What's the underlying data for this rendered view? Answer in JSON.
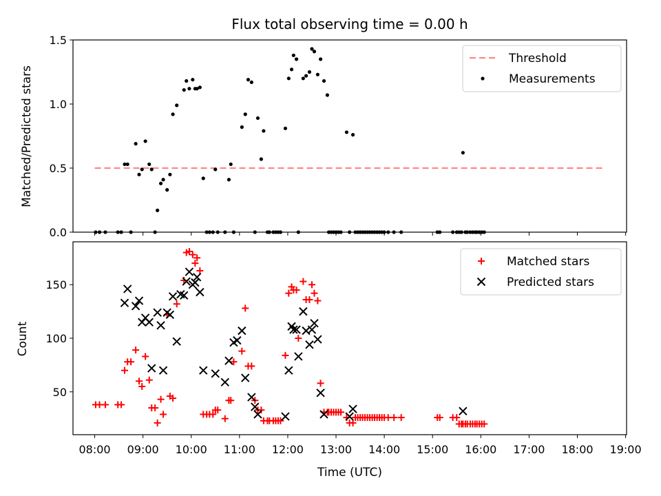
{
  "chart_data": [
    {
      "type": "scatter",
      "title": "Flux total observing time = 0.00 h",
      "xlabel": "",
      "ylabel": "Matched/Predicted stars",
      "xlim": [
        7.55,
        19.02
      ],
      "ylim": [
        0,
        1.5
      ],
      "yticks": [
        0.0,
        0.5,
        1.0,
        1.5
      ],
      "ytick_labels": [
        "0.0",
        "0.5",
        "1.0",
        "1.5"
      ],
      "xticks": [
        8,
        9,
        10,
        11,
        12,
        13,
        14,
        15,
        16,
        17,
        18,
        19
      ],
      "legend_position": "top-right",
      "threshold": {
        "name": "Threshold",
        "value": 0.5,
        "x": [
          8.0,
          18.55
        ],
        "color": "#ff7f7f"
      },
      "measurements": {
        "name": "Measurements",
        "color": "#000000",
        "points": [
          [
            8.02,
            0
          ],
          [
            8.1,
            0
          ],
          [
            8.22,
            0
          ],
          [
            8.48,
            0
          ],
          [
            8.55,
            0
          ],
          [
            8.62,
            0.53
          ],
          [
            8.68,
            0.53
          ],
          [
            8.75,
            0
          ],
          [
            8.85,
            0.69
          ],
          [
            8.92,
            0.45
          ],
          [
            8.98,
            0.49
          ],
          [
            9.05,
            0.71
          ],
          [
            9.13,
            0.53
          ],
          [
            9.18,
            0.49
          ],
          [
            9.25,
            0
          ],
          [
            9.3,
            0.17
          ],
          [
            9.37,
            0.38
          ],
          [
            9.42,
            0.41
          ],
          [
            9.5,
            0.33
          ],
          [
            9.56,
            0.45
          ],
          [
            9.62,
            0.92
          ],
          [
            9.7,
            0.99
          ],
          [
            9.85,
            1.11
          ],
          [
            9.9,
            1.18
          ],
          [
            9.96,
            1.12
          ],
          [
            10.03,
            1.19
          ],
          [
            10.08,
            1.12
          ],
          [
            10.12,
            1.12
          ],
          [
            10.18,
            1.13
          ],
          [
            10.25,
            0.42
          ],
          [
            10.32,
            0
          ],
          [
            10.38,
            0
          ],
          [
            10.45,
            0
          ],
          [
            10.5,
            0.49
          ],
          [
            10.55,
            0
          ],
          [
            10.7,
            0
          ],
          [
            10.78,
            0.41
          ],
          [
            10.82,
            0.53
          ],
          [
            10.88,
            0
          ],
          [
            11.05,
            0.82
          ],
          [
            11.12,
            0.92
          ],
          [
            11.18,
            1.19
          ],
          [
            11.25,
            1.17
          ],
          [
            11.32,
            0
          ],
          [
            11.38,
            0.89
          ],
          [
            11.45,
            0.57
          ],
          [
            11.5,
            0.79
          ],
          [
            11.58,
            0
          ],
          [
            11.62,
            0
          ],
          [
            11.7,
            0
          ],
          [
            11.75,
            0
          ],
          [
            11.8,
            0
          ],
          [
            11.85,
            0
          ],
          [
            11.95,
            0.81
          ],
          [
            12.02,
            1.2
          ],
          [
            12.08,
            1.27
          ],
          [
            12.12,
            1.38
          ],
          [
            12.18,
            1.35
          ],
          [
            12.22,
            0
          ],
          [
            12.32,
            1.2
          ],
          [
            12.38,
            1.22
          ],
          [
            12.45,
            1.25
          ],
          [
            12.5,
            1.43
          ],
          [
            12.55,
            1.41
          ],
          [
            12.62,
            1.23
          ],
          [
            12.68,
            1.35
          ],
          [
            12.75,
            1.18
          ],
          [
            12.82,
            1.07
          ],
          [
            12.85,
            0
          ],
          [
            12.9,
            0
          ],
          [
            12.95,
            0
          ],
          [
            13.0,
            0
          ],
          [
            13.05,
            0
          ],
          [
            13.1,
            0
          ],
          [
            13.22,
            0.78
          ],
          [
            13.28,
            0
          ],
          [
            13.35,
            0.76
          ],
          [
            13.4,
            0
          ],
          [
            13.45,
            0
          ],
          [
            13.5,
            0
          ],
          [
            13.55,
            0
          ],
          [
            13.6,
            0
          ],
          [
            13.65,
            0
          ],
          [
            13.7,
            0
          ],
          [
            13.75,
            0
          ],
          [
            13.8,
            0
          ],
          [
            13.85,
            0
          ],
          [
            13.9,
            0
          ],
          [
            13.95,
            0
          ],
          [
            14.0,
            0
          ],
          [
            14.08,
            0
          ],
          [
            14.2,
            0
          ],
          [
            14.35,
            0
          ],
          [
            15.1,
            0
          ],
          [
            15.15,
            0
          ],
          [
            15.42,
            0
          ],
          [
            15.5,
            0
          ],
          [
            15.55,
            0
          ],
          [
            15.6,
            0
          ],
          [
            15.63,
            0.62
          ],
          [
            15.68,
            0
          ],
          [
            15.72,
            0
          ],
          [
            15.78,
            0
          ],
          [
            15.83,
            0
          ],
          [
            15.88,
            0
          ],
          [
            15.92,
            0
          ],
          [
            15.97,
            0
          ],
          [
            16.02,
            0
          ],
          [
            16.07,
            0
          ]
        ]
      }
    },
    {
      "type": "scatter",
      "title": "",
      "xlabel": "Time (UTC)",
      "ylabel": "Count",
      "xlim": [
        7.55,
        19.02
      ],
      "ylim": [
        10,
        190
      ],
      "yticks": [
        50,
        100,
        150
      ],
      "xticks": [
        8,
        9,
        10,
        11,
        12,
        13,
        14,
        15,
        16,
        17,
        18,
        19
      ],
      "xtick_labels": [
        "08:00",
        "09:00",
        "10:00",
        "11:00",
        "12:00",
        "13:00",
        "14:00",
        "15:00",
        "16:00",
        "17:00",
        "18:00",
        "19:00"
      ],
      "legend_position": "top-right",
      "series": [
        {
          "name": "Matched stars",
          "marker": "plus",
          "color": "#ff0000",
          "points": [
            [
              8.02,
              38
            ],
            [
              8.1,
              38
            ],
            [
              8.22,
              38
            ],
            [
              8.48,
              38
            ],
            [
              8.55,
              38
            ],
            [
              8.62,
              70
            ],
            [
              8.68,
              78
            ],
            [
              8.75,
              78
            ],
            [
              8.85,
              89
            ],
            [
              8.92,
              60
            ],
            [
              8.98,
              55
            ],
            [
              9.05,
              83
            ],
            [
              9.13,
              61
            ],
            [
              9.18,
              35
            ],
            [
              9.25,
              35
            ],
            [
              9.3,
              21
            ],
            [
              9.37,
              43
            ],
            [
              9.42,
              29
            ],
            [
              9.5,
              122
            ],
            [
              9.56,
              46
            ],
            [
              9.62,
              44
            ],
            [
              9.7,
              132
            ],
            [
              9.85,
              154
            ],
            [
              9.9,
              180
            ],
            [
              9.96,
              181
            ],
            [
              10.03,
              178
            ],
            [
              10.08,
              170
            ],
            [
              10.12,
              175
            ],
            [
              10.18,
              163
            ],
            [
              10.25,
              29
            ],
            [
              10.32,
              29
            ],
            [
              10.38,
              29
            ],
            [
              10.45,
              29
            ],
            [
              10.5,
              33
            ],
            [
              10.55,
              33
            ],
            [
              10.7,
              25
            ],
            [
              10.78,
              42
            ],
            [
              10.82,
              42
            ],
            [
              10.88,
              78
            ],
            [
              11.05,
              88
            ],
            [
              11.12,
              128
            ],
            [
              11.18,
              74
            ],
            [
              11.25,
              74
            ],
            [
              11.32,
              42
            ],
            [
              11.38,
              33
            ],
            [
              11.45,
              33
            ],
            [
              11.5,
              23
            ],
            [
              11.58,
              23
            ],
            [
              11.62,
              23
            ],
            [
              11.7,
              23
            ],
            [
              11.75,
              23
            ],
            [
              11.8,
              23
            ],
            [
              11.85,
              23
            ],
            [
              11.95,
              84
            ],
            [
              12.02,
              142
            ],
            [
              12.08,
              148
            ],
            [
              12.12,
              145
            ],
            [
              12.18,
              145
            ],
            [
              12.22,
              100
            ],
            [
              12.32,
              153
            ],
            [
              12.38,
              136
            ],
            [
              12.45,
              136
            ],
            [
              12.5,
              150
            ],
            [
              12.55,
              142
            ],
            [
              12.62,
              135
            ],
            [
              12.68,
              58
            ],
            [
              12.75,
              31
            ],
            [
              12.82,
              31
            ],
            [
              12.85,
              31
            ],
            [
              12.9,
              31
            ],
            [
              12.95,
              31
            ],
            [
              13.0,
              31
            ],
            [
              13.05,
              31
            ],
            [
              13.1,
              31
            ],
            [
              13.22,
              26
            ],
            [
              13.28,
              21
            ],
            [
              13.35,
              21
            ],
            [
              13.4,
              26
            ],
            [
              13.45,
              26
            ],
            [
              13.5,
              26
            ],
            [
              13.55,
              26
            ],
            [
              13.6,
              26
            ],
            [
              13.65,
              26
            ],
            [
              13.7,
              26
            ],
            [
              13.75,
              26
            ],
            [
              13.8,
              26
            ],
            [
              13.85,
              26
            ],
            [
              13.9,
              26
            ],
            [
              13.95,
              26
            ],
            [
              14.0,
              26
            ],
            [
              14.08,
              26
            ],
            [
              14.2,
              26
            ],
            [
              14.35,
              26
            ],
            [
              15.1,
              26
            ],
            [
              15.15,
              26
            ],
            [
              15.42,
              26
            ],
            [
              15.5,
              26
            ],
            [
              15.55,
              20
            ],
            [
              15.6,
              20
            ],
            [
              15.63,
              20
            ],
            [
              15.68,
              20
            ],
            [
              15.72,
              20
            ],
            [
              15.78,
              20
            ],
            [
              15.83,
              20
            ],
            [
              15.88,
              20
            ],
            [
              15.92,
              20
            ],
            [
              15.97,
              20
            ],
            [
              16.02,
              20
            ],
            [
              16.07,
              20
            ]
          ]
        },
        {
          "name": "Predicted stars",
          "marker": "x",
          "color": "#000000",
          "points": [
            [
              8.62,
              133
            ],
            [
              8.68,
              146
            ],
            [
              8.85,
              130
            ],
            [
              8.92,
              135
            ],
            [
              8.98,
              115
            ],
            [
              9.05,
              119
            ],
            [
              9.13,
              115
            ],
            [
              9.18,
              72
            ],
            [
              9.3,
              124
            ],
            [
              9.37,
              112
            ],
            [
              9.42,
              70
            ],
            [
              9.5,
              124
            ],
            [
              9.56,
              122
            ],
            [
              9.62,
              139
            ],
            [
              9.7,
              97
            ],
            [
              9.78,
              141
            ],
            [
              9.85,
              140
            ],
            [
              9.9,
              153
            ],
            [
              9.96,
              162
            ],
            [
              10.03,
              150
            ],
            [
              10.08,
              152
            ],
            [
              10.12,
              157
            ],
            [
              10.18,
              143
            ],
            [
              10.25,
              70
            ],
            [
              10.5,
              67
            ],
            [
              10.7,
              59
            ],
            [
              10.78,
              79
            ],
            [
              10.88,
              96
            ],
            [
              10.95,
              98
            ],
            [
              11.05,
              107
            ],
            [
              11.12,
              63
            ],
            [
              11.25,
              45
            ],
            [
              11.32,
              36
            ],
            [
              11.38,
              29
            ],
            [
              11.95,
              27
            ],
            [
              12.02,
              70
            ],
            [
              12.08,
              111
            ],
            [
              12.12,
              108
            ],
            [
              12.18,
              108
            ],
            [
              12.22,
              83
            ],
            [
              12.32,
              125
            ],
            [
              12.38,
              107
            ],
            [
              12.45,
              94
            ],
            [
              12.5,
              108
            ],
            [
              12.55,
              114
            ],
            [
              12.62,
              99
            ],
            [
              12.68,
              49
            ],
            [
              12.75,
              29
            ],
            [
              13.28,
              27
            ],
            [
              13.35,
              34
            ],
            [
              15.63,
              32
            ]
          ]
        }
      ]
    }
  ]
}
